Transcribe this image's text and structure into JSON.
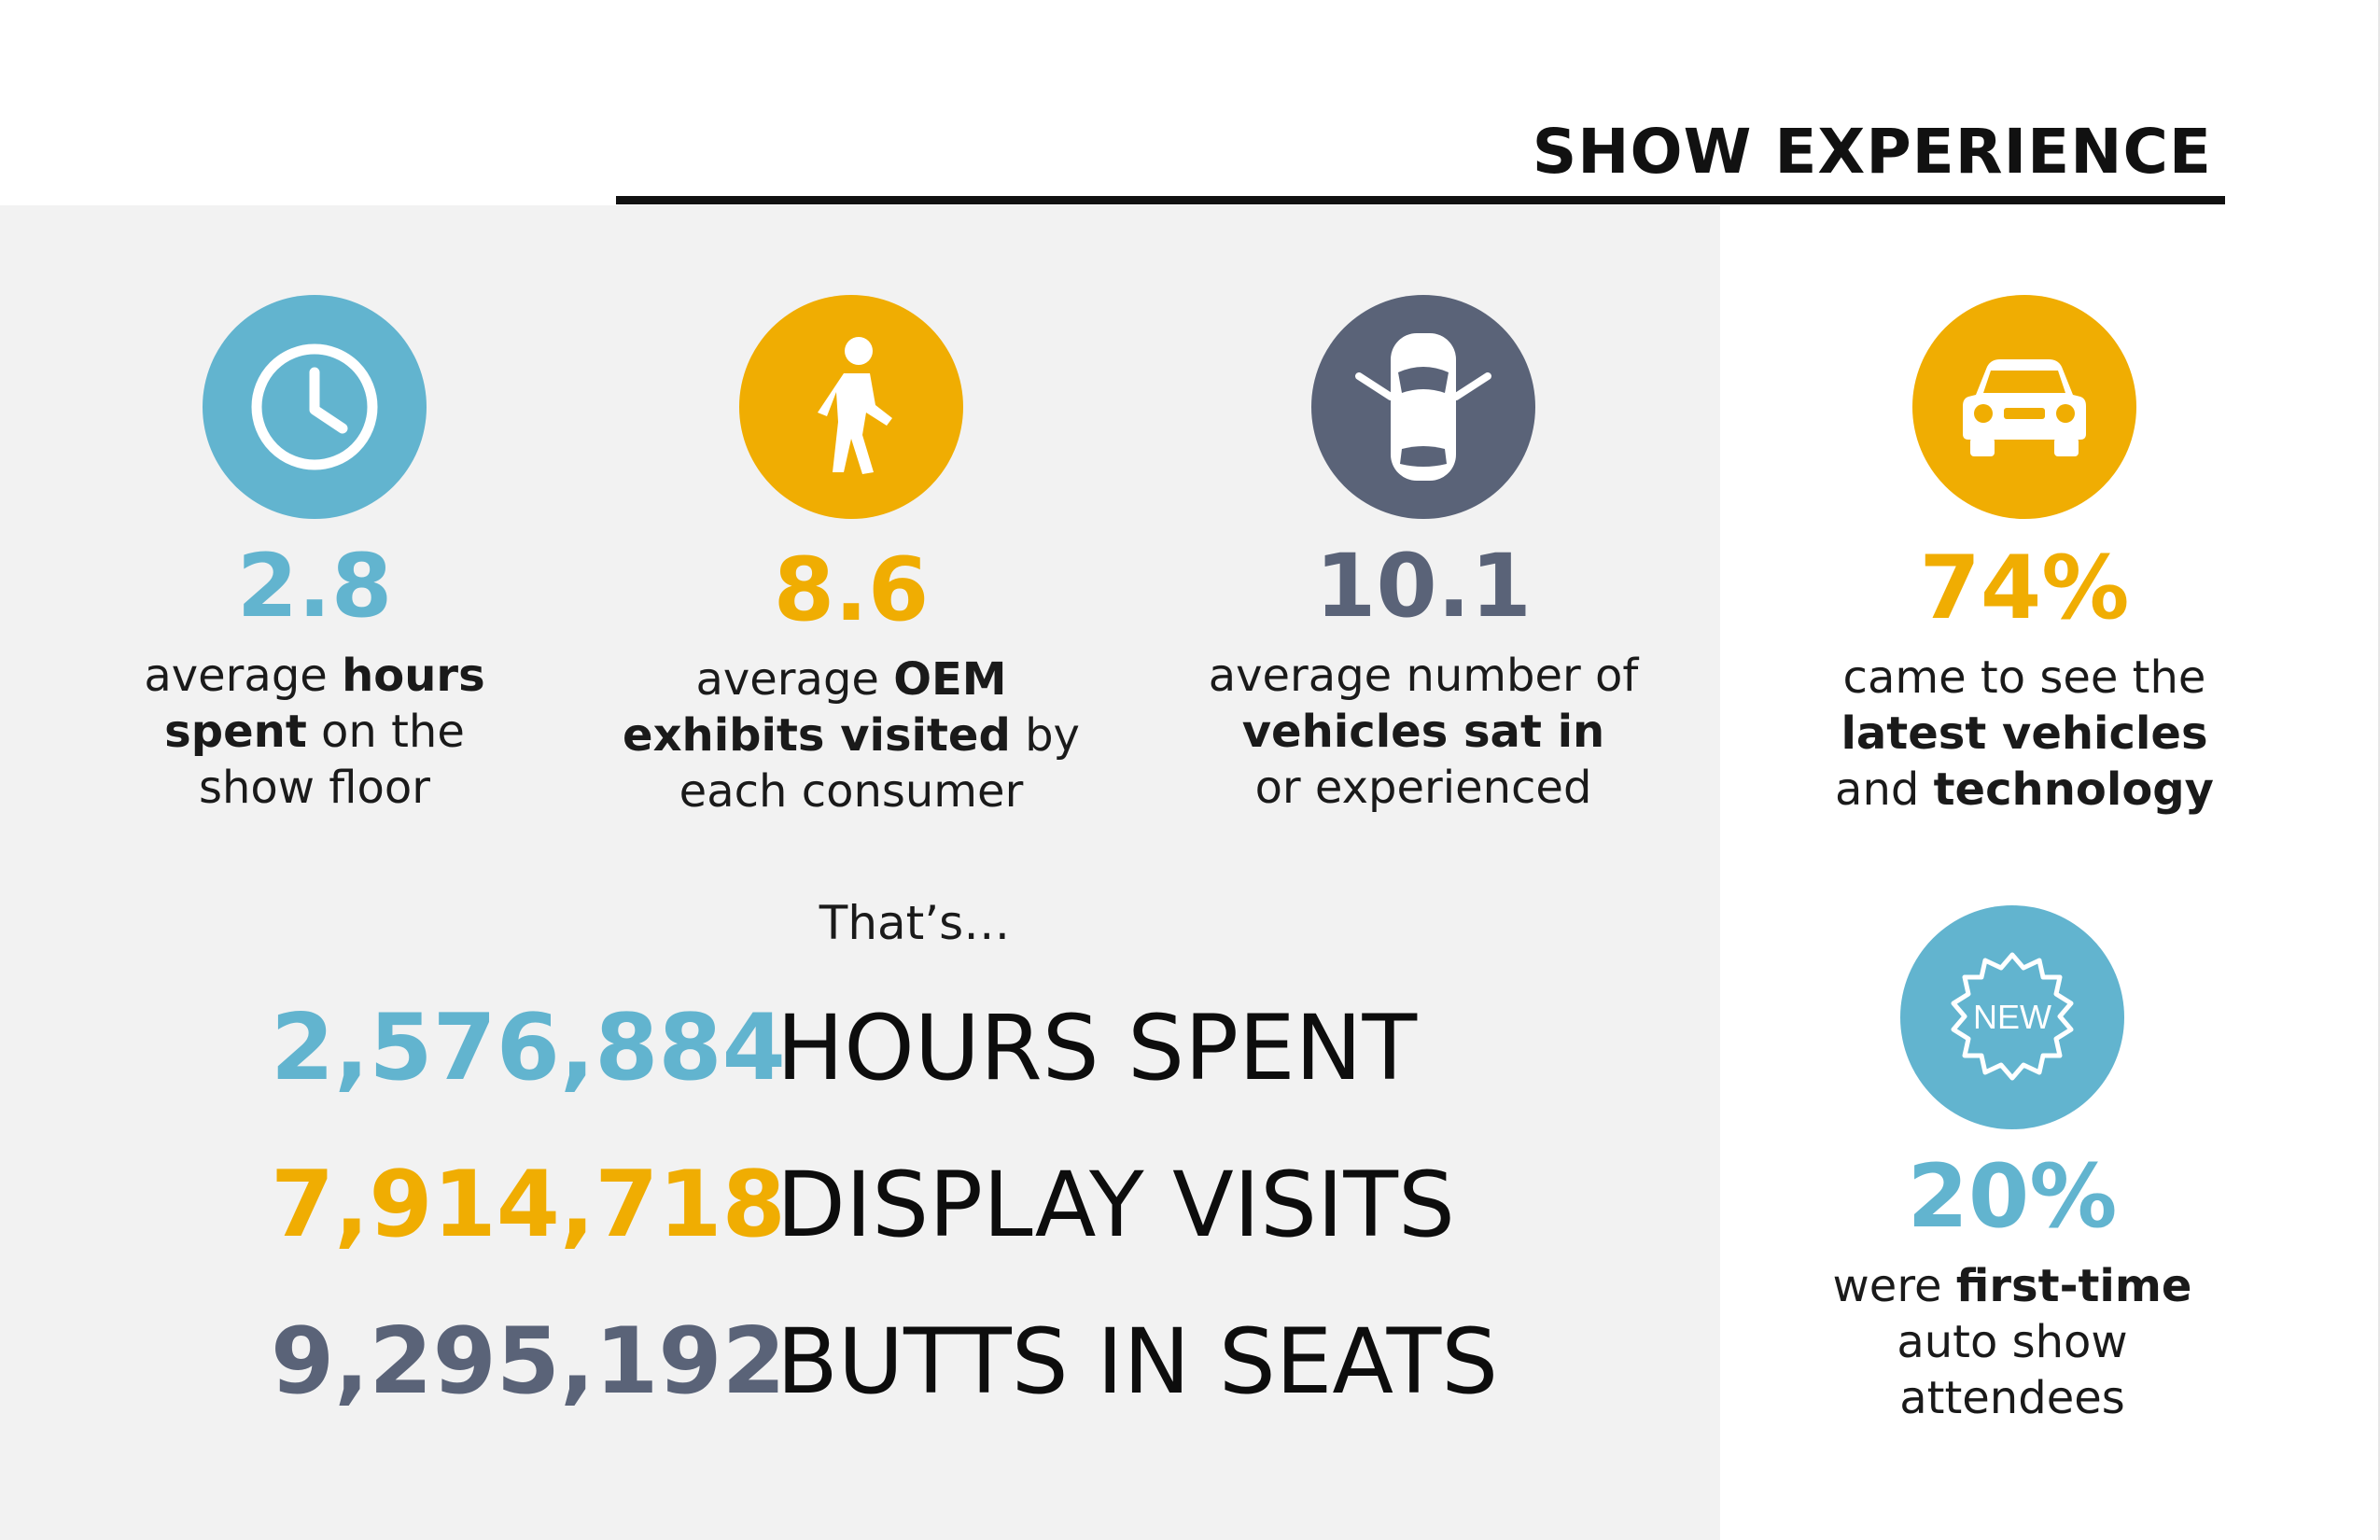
{
  "colors": {
    "blue": "#62b4cf",
    "gold": "#f0ad02",
    "slate": "#5a6378"
  },
  "header": {
    "title": "SHOW EXPERIENCE"
  },
  "stats": [
    {
      "icon": "clock-icon",
      "value": "2.8",
      "line1": {
        "pre": "average ",
        "bold": "hours",
        "post": ""
      },
      "line2": {
        "pre": "",
        "bold": "spent",
        "post": " on the"
      },
      "line3": {
        "pre": "show floor",
        "bold": "",
        "post": ""
      }
    },
    {
      "icon": "walking-person-icon",
      "value": "8.6",
      "line1": {
        "pre": "average ",
        "bold": "OEM",
        "post": ""
      },
      "line2": {
        "pre": "",
        "bold": "exhibits visited",
        "post": " by"
      },
      "line3": {
        "pre": "each consumer",
        "bold": "",
        "post": ""
      }
    },
    {
      "icon": "car-top-view-icon",
      "value": "10.1",
      "line1": {
        "pre": "average number of",
        "bold": "",
        "post": ""
      },
      "line2": {
        "pre": "",
        "bold": "vehicles sat in",
        "post": ""
      },
      "line3": {
        "pre": "or experienced",
        "bold": "",
        "post": ""
      }
    },
    {
      "icon": "car-front-icon",
      "value": "74%",
      "line1": {
        "pre": "came to see the",
        "bold": "",
        "post": ""
      },
      "line2": {
        "pre": "",
        "bold": "latest vehicles",
        "post": ""
      },
      "line3": {
        "pre": "and ",
        "bold": "technology",
        "post": ""
      }
    },
    {
      "icon": "new-badge-icon",
      "badge_text": "NEW",
      "value": "20%",
      "line1": {
        "pre": "were ",
        "bold": "first-time",
        "post": ""
      },
      "line2": {
        "pre": "auto show",
        "bold": "",
        "post": ""
      },
      "line3": {
        "pre": "attendees",
        "bold": "",
        "post": ""
      }
    }
  ],
  "thats": "That’s…",
  "totals": [
    {
      "number": "2,576,884",
      "label": "HOURS SPENT"
    },
    {
      "number": "7,914,718",
      "label": "DISPLAY VISITS"
    },
    {
      "number": "9,295,192",
      "label": "BUTTS IN SEATS"
    }
  ]
}
